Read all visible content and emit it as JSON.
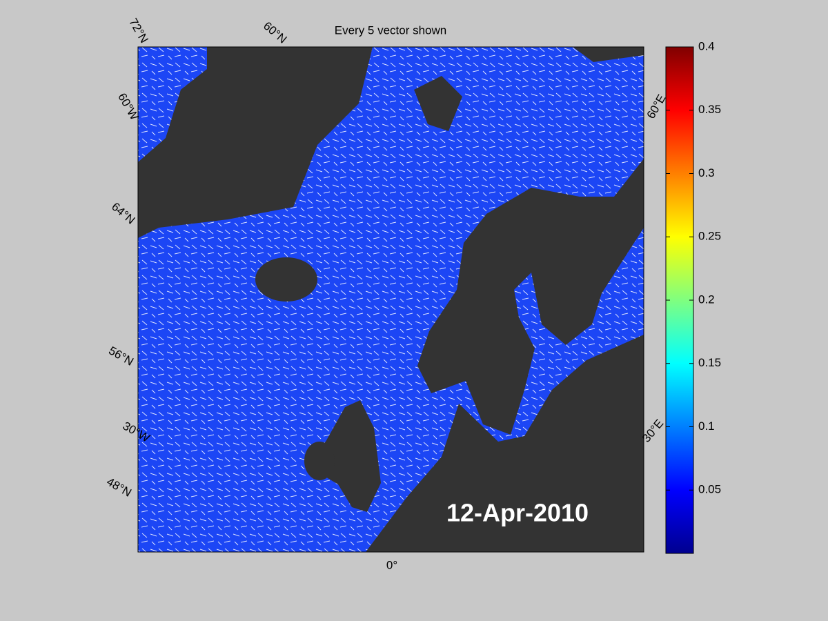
{
  "title": "Every 5 vector shown",
  "date": "12-Apr-2010",
  "map_labels": [
    "72°N",
    "60°N",
    "60°W",
    "64°N",
    "56°N",
    "30°W",
    "48°N",
    "0°",
    "60°E",
    "30°E"
  ],
  "colorbar": {
    "lim": [
      0,
      0.4
    ],
    "ticks": [
      0.05,
      0.1,
      0.15,
      0.2,
      0.25,
      0.3,
      0.35,
      0.4
    ]
  }
}
